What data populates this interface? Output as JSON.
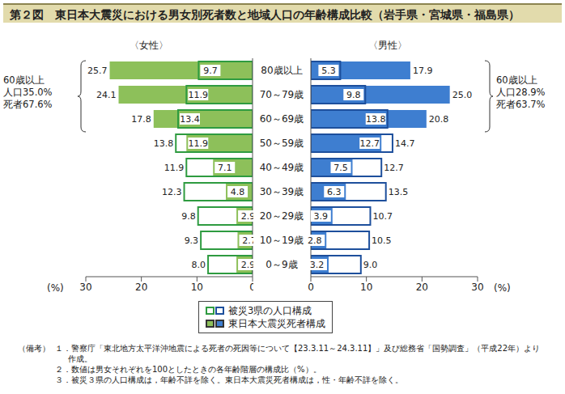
{
  "title": "第２図　東日本大震災における男女別死者数と地域人口の年齢構成比較（岩手県・宮城県・福島県）",
  "chart_data": [
    {
      "type": "bar",
      "orientation": "horizontal",
      "title": "〈女性〉",
      "categories": [
        "80歳以上",
        "70～79歳",
        "60～69歳",
        "50～59歳",
        "40～49歳",
        "30～39歳",
        "20～29歳",
        "10～19歳",
        "0～9歳"
      ],
      "series": [
        {
          "name": "被災3県の人口構成",
          "color": "#2e9b40",
          "values": [
            9.7,
            11.9,
            13.4,
            13.8,
            11.9,
            12.3,
            9.8,
            9.3,
            8.0
          ],
          "value_labels": [
            "9.7",
            "11.9",
            "13.4",
            "13.8",
            "11.9",
            "12.3",
            "9.8",
            "9.3",
            "8.0"
          ]
        },
        {
          "name": "東日本大震災死者構成",
          "color": "#8dc05a",
          "values": [
            25.7,
            24.1,
            17.8,
            11.9,
            7.1,
            4.8,
            2.9,
            2.7,
            2.9
          ],
          "value_labels": [
            "25.7",
            "24.1",
            "17.8",
            "11.9",
            "7.1",
            "4.8",
            "2.9",
            "2.7",
            "2.9"
          ]
        }
      ],
      "xlim": [
        0,
        30
      ],
      "xticks": [
        0,
        10,
        20,
        30
      ],
      "x_label": "(%)",
      "annotation": [
        "60歳以上",
        "人口35.0%",
        "死者67.6%"
      ],
      "data_labels": true,
      "legend": "bottom"
    },
    {
      "type": "bar",
      "orientation": "horizontal",
      "title": "〈男性〉",
      "categories": [
        "80歳以上",
        "70～79歳",
        "60～69歳",
        "50～59歳",
        "40～49歳",
        "30～39歳",
        "20～29歳",
        "10～19歳",
        "0～9歳"
      ],
      "series": [
        {
          "name": "被災3県の人口構成",
          "color": "#1d4f9c",
          "values": [
            5.3,
            9.8,
            13.8,
            14.7,
            12.7,
            13.5,
            10.7,
            10.5,
            9.0
          ],
          "value_labels": [
            "5.3",
            "9.8",
            "13.8",
            "14.7",
            "12.7",
            "13.5",
            "10.7",
            "10.5",
            "9.0"
          ]
        },
        {
          "name": "東日本大震災死者構成",
          "color": "#3e7ed0",
          "values": [
            17.9,
            25.0,
            20.8,
            12.7,
            7.5,
            6.3,
            3.9,
            2.8,
            3.2
          ],
          "value_labels": [
            "17.9",
            "25.0",
            "20.8",
            "12.7",
            "7.5",
            "6.3",
            "3.9",
            "2.8",
            "3.2"
          ]
        }
      ],
      "xlim": [
        0,
        30
      ],
      "xticks": [
        0,
        10,
        20,
        30
      ],
      "x_label": "(%)",
      "annotation": [
        "60歳以上",
        "人口28.9%",
        "死者63.7%"
      ],
      "data_labels": true
    }
  ],
  "notes": {
    "label": "（備考）",
    "items": [
      "１．警察庁「東北地方太平洋沖地震による死者の死因等について【23.3.11～24.3.11】」及び総務省「国勢調査」（平成22年）より作成。",
      "２．数値は男女それぞれを100としたときの各年齢階層の構成比（%）。",
      "３．被災３県の人口構成は，年齢不詳を除く。東日本大震災死者構成は，性・年齢不詳を除く。"
    ]
  }
}
